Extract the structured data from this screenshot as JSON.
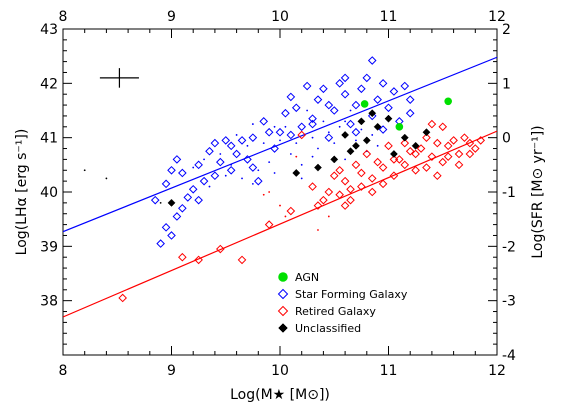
{
  "chart_data": {
    "type": "scatter",
    "title": "",
    "xlabel": "Log(M★ [M⊙])",
    "ylabel": "Log(LHα [erg s⁻¹])",
    "y2label": "Log(SFR [M⊙ yr⁻¹])",
    "xlim": [
      8,
      12
    ],
    "ylim": [
      37,
      43
    ],
    "y2lim": [
      -4,
      2
    ],
    "x_ticks": [
      "8",
      "9",
      "10",
      "11",
      "12"
    ],
    "x_top_ticks": [
      "8",
      "9",
      "10",
      "11",
      "12"
    ],
    "y_ticks": [
      "38",
      "39",
      "40",
      "41",
      "42",
      "43"
    ],
    "y2_ticks": [
      "-4",
      "-3",
      "-2",
      "-1",
      "0",
      "1",
      "2"
    ],
    "grid": false,
    "legend_position": "bottom-center",
    "error_bar": {
      "x": 8.52,
      "y": 42.1,
      "xerr": 0.18,
      "yerr": 0.18
    },
    "lines": [
      {
        "color": "#0000ff",
        "x": [
          8,
          12
        ],
        "y": [
          39.27,
          42.48
        ]
      },
      {
        "color": "#ff0000",
        "x": [
          8,
          12
        ],
        "y": [
          37.7,
          41.12
        ]
      }
    ],
    "series": [
      {
        "name": "AGN",
        "marker": "filled-circle",
        "color": "#00e000",
        "points": [
          [
            10.78,
            41.62
          ],
          [
            11.1,
            41.2
          ],
          [
            11.55,
            41.67
          ]
        ]
      },
      {
        "name": "Star Forming Galaxy",
        "marker": "open-diamond",
        "color": "#0000ff",
        "points": [
          [
            8.85,
            39.85
          ],
          [
            8.95,
            40.15
          ],
          [
            9.0,
            40.4
          ],
          [
            9.05,
            40.6
          ],
          [
            9.1,
            40.35
          ],
          [
            9.15,
            39.9
          ],
          [
            9.2,
            40.05
          ],
          [
            9.25,
            40.5
          ],
          [
            9.3,
            40.2
          ],
          [
            9.35,
            40.75
          ],
          [
            9.4,
            40.9
          ],
          [
            9.45,
            40.55
          ],
          [
            9.5,
            40.95
          ],
          [
            9.55,
            40.4
          ],
          [
            9.6,
            40.7
          ],
          [
            9.65,
            40.95
          ],
          [
            9.7,
            40.6
          ],
          [
            9.75,
            41.0
          ],
          [
            9.8,
            40.2
          ],
          [
            9.85,
            41.3
          ],
          [
            9.9,
            41.1
          ],
          [
            9.95,
            40.8
          ],
          [
            10.0,
            41.1
          ],
          [
            10.05,
            41.45
          ],
          [
            10.1,
            41.75
          ],
          [
            10.15,
            41.55
          ],
          [
            10.2,
            41.2
          ],
          [
            10.25,
            41.95
          ],
          [
            10.3,
            41.35
          ],
          [
            10.35,
            41.7
          ],
          [
            10.4,
            41.9
          ],
          [
            10.45,
            41.0
          ],
          [
            10.5,
            41.5
          ],
          [
            10.55,
            42.0
          ],
          [
            10.6,
            41.8
          ],
          [
            10.65,
            41.25
          ],
          [
            10.7,
            41.6
          ],
          [
            10.75,
            41.9
          ],
          [
            10.8,
            42.1
          ],
          [
            10.85,
            41.4
          ],
          [
            10.9,
            41.7
          ],
          [
            10.95,
            42.0
          ],
          [
            11.0,
            41.55
          ],
          [
            11.05,
            41.85
          ],
          [
            11.1,
            41.3
          ],
          [
            11.15,
            41.95
          ],
          [
            11.2,
            41.7
          ],
          [
            10.85,
            42.42
          ],
          [
            8.95,
            39.35
          ],
          [
            9.0,
            39.2
          ],
          [
            9.05,
            39.55
          ],
          [
            9.1,
            39.7
          ],
          [
            8.9,
            39.05
          ],
          [
            9.25,
            39.85
          ],
          [
            9.4,
            40.3
          ],
          [
            9.55,
            40.85
          ],
          [
            9.75,
            40.45
          ],
          [
            10.1,
            41.05
          ],
          [
            10.3,
            41.25
          ],
          [
            10.45,
            41.6
          ],
          [
            10.6,
            42.1
          ],
          [
            10.95,
            41.15
          ],
          [
            11.2,
            41.45
          ],
          [
            10.7,
            41.1
          ]
        ]
      },
      {
        "name": "Retired Galaxy",
        "marker": "open-diamond",
        "color": "#ff0000",
        "points": [
          [
            8.55,
            38.05
          ],
          [
            9.1,
            38.8
          ],
          [
            9.25,
            38.75
          ],
          [
            9.45,
            38.95
          ],
          [
            9.65,
            38.75
          ],
          [
            9.9,
            39.4
          ],
          [
            10.1,
            39.65
          ],
          [
            10.3,
            40.1
          ],
          [
            10.4,
            39.85
          ],
          [
            10.5,
            40.3
          ],
          [
            10.55,
            39.95
          ],
          [
            10.6,
            40.2
          ],
          [
            10.65,
            40.05
          ],
          [
            10.7,
            40.5
          ],
          [
            10.75,
            40.35
          ],
          [
            10.8,
            40.7
          ],
          [
            10.85,
            40.0
          ],
          [
            10.9,
            40.55
          ],
          [
            10.95,
            40.45
          ],
          [
            11.0,
            40.85
          ],
          [
            11.05,
            40.3
          ],
          [
            11.1,
            40.6
          ],
          [
            11.15,
            40.9
          ],
          [
            11.2,
            40.75
          ],
          [
            11.25,
            40.4
          ],
          [
            11.3,
            40.8
          ],
          [
            11.35,
            41.0
          ],
          [
            11.4,
            40.65
          ],
          [
            11.45,
            40.9
          ],
          [
            11.5,
            40.55
          ],
          [
            11.55,
            40.85
          ],
          [
            11.6,
            40.95
          ],
          [
            11.65,
            40.7
          ],
          [
            11.7,
            41.0
          ],
          [
            11.75,
            40.9
          ],
          [
            11.8,
            40.8
          ],
          [
            11.5,
            41.2
          ],
          [
            11.4,
            41.25
          ],
          [
            10.35,
            39.75
          ],
          [
            10.45,
            40.0
          ],
          [
            10.55,
            40.4
          ],
          [
            10.65,
            39.85
          ],
          [
            10.75,
            40.1
          ],
          [
            10.85,
            40.25
          ],
          [
            10.95,
            40.15
          ],
          [
            11.05,
            40.6
          ],
          [
            11.15,
            40.5
          ],
          [
            11.25,
            40.7
          ],
          [
            11.35,
            40.45
          ],
          [
            11.45,
            40.3
          ],
          [
            11.55,
            40.65
          ],
          [
            11.65,
            40.5
          ],
          [
            11.75,
            40.7
          ],
          [
            11.85,
            40.95
          ],
          [
            10.2,
            41.05
          ],
          [
            10.6,
            39.75
          ]
        ]
      },
      {
        "name": "Unclassified",
        "marker": "filled-diamond",
        "color": "#000000",
        "points": [
          [
            9.0,
            39.8
          ],
          [
            10.15,
            40.35
          ],
          [
            10.5,
            40.6
          ],
          [
            10.6,
            41.05
          ],
          [
            10.7,
            40.85
          ],
          [
            10.75,
            41.3
          ],
          [
            10.8,
            40.95
          ],
          [
            10.9,
            41.2
          ],
          [
            11.0,
            41.35
          ],
          [
            11.05,
            40.7
          ],
          [
            11.15,
            41.0
          ],
          [
            11.25,
            40.85
          ],
          [
            11.35,
            41.1
          ],
          [
            10.65,
            40.75
          ],
          [
            10.85,
            41.45
          ],
          [
            10.35,
            40.45
          ]
        ]
      },
      {
        "marker": "dot",
        "color": "#0000ff",
        "points": [
          [
            9.3,
            40.6
          ],
          [
            9.5,
            40.3
          ],
          [
            9.6,
            41.05
          ],
          [
            9.7,
            40.85
          ],
          [
            9.8,
            40.4
          ],
          [
            9.9,
            40.55
          ],
          [
            10.0,
            40.95
          ],
          [
            10.1,
            40.7
          ],
          [
            10.2,
            40.5
          ],
          [
            10.3,
            41.0
          ],
          [
            10.35,
            40.8
          ],
          [
            10.4,
            41.3
          ],
          [
            10.5,
            40.9
          ],
          [
            10.55,
            41.2
          ],
          [
            10.6,
            40.6
          ],
          [
            10.65,
            41.5
          ],
          [
            10.7,
            40.95
          ],
          [
            10.75,
            41.15
          ],
          [
            10.8,
            40.75
          ],
          [
            10.85,
            41.05
          ],
          [
            10.9,
            40.85
          ],
          [
            9.45,
            40.7
          ],
          [
            9.55,
            40.5
          ],
          [
            9.65,
            40.25
          ],
          [
            9.75,
            40.15
          ],
          [
            9.85,
            40.9
          ],
          [
            9.95,
            40.35
          ],
          [
            10.05,
            41.2
          ],
          [
            10.15,
            40.9
          ],
          [
            10.25,
            41.5
          ],
          [
            10.45,
            41.1
          ],
          [
            10.6,
            41.3
          ],
          [
            9.2,
            40.45
          ],
          [
            9.35,
            40.1
          ],
          [
            9.75,
            41.25
          ],
          [
            9.95,
            41.2
          ],
          [
            10.2,
            40.25
          ],
          [
            10.3,
            40.65
          ]
        ]
      },
      {
        "marker": "dot",
        "color": "#000000",
        "points": [
          [
            8.2,
            40.4
          ],
          [
            8.4,
            40.25
          ],
          [
            8.9,
            39.8
          ]
        ]
      },
      {
        "marker": "dot",
        "color": "#ff0000",
        "points": [
          [
            9.9,
            40.0
          ],
          [
            10.0,
            39.75
          ],
          [
            10.05,
            39.55
          ],
          [
            10.35,
            39.3
          ],
          [
            10.45,
            39.55
          ],
          [
            10.15,
            40.65
          ],
          [
            9.85,
            39.95
          ]
        ]
      }
    ]
  }
}
